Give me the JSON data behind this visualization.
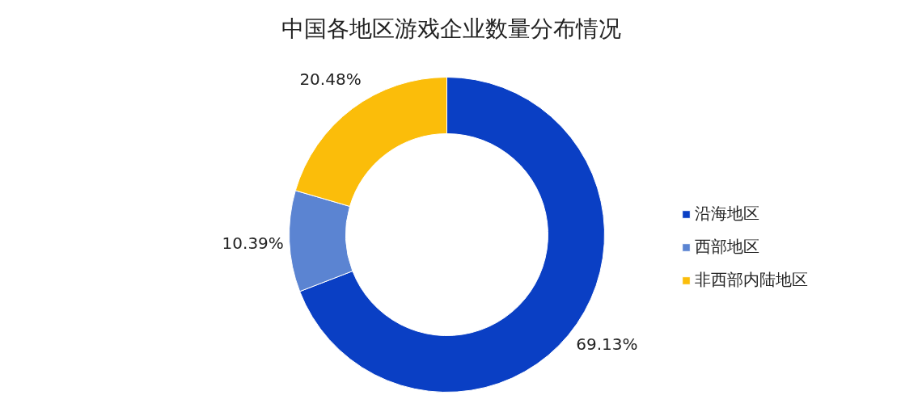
{
  "chart_data": {
    "type": "donut",
    "title": "中国各地区游戏企业数量分布情况",
    "categories": [
      "沿海地区",
      "西部地区",
      "非西部内陆地区"
    ],
    "values": [
      69.13,
      10.39,
      20.48
    ],
    "colors": [
      "#0a3fc4",
      "#5b84d2",
      "#fbbd0a"
    ],
    "value_labels": [
      "69.13%",
      "10.39%",
      "20.48%"
    ],
    "legend": "right"
  }
}
